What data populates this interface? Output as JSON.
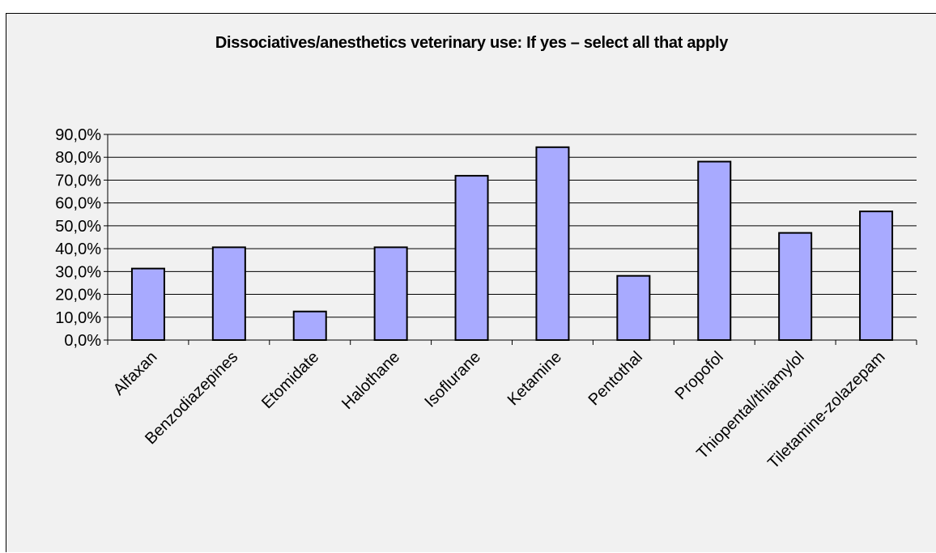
{
  "chart_data": {
    "type": "bar",
    "title": "Dissociatives/anesthetics veterinary use: If yes – select all that apply",
    "xlabel": "",
    "ylabel": "",
    "categories": [
      "Alfaxan",
      "Benzodiazepines",
      "Etomidate",
      "Halothane",
      "Isoflurane",
      "Ketamine",
      "Pentothal",
      "Propofol",
      "Thiopental/thiamylol",
      "Tiletamine-zolazepam"
    ],
    "values": [
      31.3,
      40.6,
      12.5,
      40.6,
      71.9,
      84.4,
      28.1,
      78.1,
      46.9,
      56.3
    ],
    "ylim": [
      0,
      90
    ],
    "yticks": [
      "0,0%",
      "10,0%",
      "20,0%",
      "30,0%",
      "40,0%",
      "50,0%",
      "60,0%",
      "70,0%",
      "80,0%",
      "90,0%"
    ],
    "grid": true,
    "legend": "none",
    "bar_color": "#a8aaff",
    "bar_edge_color": "#000000"
  }
}
